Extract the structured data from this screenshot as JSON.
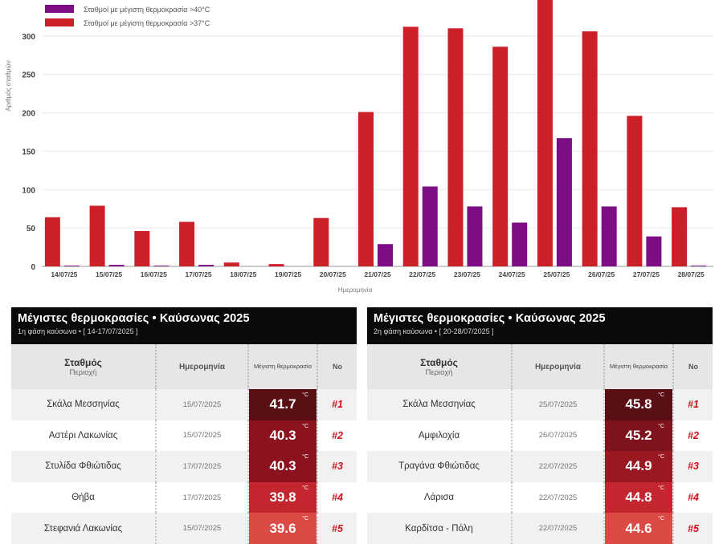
{
  "chart_data": {
    "type": "bar",
    "title": "",
    "xlabel": "Ημερομηνία",
    "ylabel": "Αριθμός σταθμών",
    "ylim": [
      0,
      350
    ],
    "yticks": [
      0,
      50,
      100,
      150,
      200,
      250,
      300
    ],
    "grid": true,
    "legend_position": "top-left",
    "categories": [
      "14/07/25",
      "15/07/25",
      "16/07/25",
      "17/07/25",
      "18/07/25",
      "19/07/25",
      "20/07/25",
      "21/07/25",
      "22/07/25",
      "23/07/25",
      "24/07/25",
      "25/07/25",
      "26/07/25",
      "27/07/25",
      "28/07/25"
    ],
    "series": [
      {
        "name": "Σταθμοί με μέγιστη θερμοκρασία >37°C",
        "color": "#cc1f27",
        "values": [
          64,
          79,
          46,
          58,
          5,
          3,
          63,
          201,
          312,
          310,
          286,
          356,
          306,
          196,
          77
        ]
      },
      {
        "name": "Σταθμοί με μέγιστη θερμοκρασία >40°C",
        "color": "#7d0d84",
        "values": [
          1,
          2,
          1,
          2,
          0,
          0,
          0,
          29,
          104,
          78,
          57,
          167,
          78,
          39,
          1
        ]
      }
    ]
  },
  "tables": [
    {
      "title": "Μέγιστες θερμοκρασίες • Καύσωνας 2025",
      "subtitle": "1η φάση καύσωνα • [ 14-17/07/2025 ]",
      "headers": {
        "station": "Σταθμός",
        "region": "Περιοχή",
        "date": "Ημερομηνία",
        "max": "Μέγιστη θερμοκρασία",
        "no": "No"
      },
      "rows": [
        {
          "station": "Σκάλα Μεσσηνίας",
          "date": "15/07/2025",
          "temp": "41.7",
          "unit": "°C",
          "rank": "#1",
          "color": "#5a0f14"
        },
        {
          "station": "Αστέρι Λακωνίας",
          "date": "15/07/2025",
          "temp": "40.3",
          "unit": "°C",
          "rank": "#2",
          "color": "#8b131f"
        },
        {
          "station": "Στυλίδα Φθιώτιδας",
          "date": "17/07/2025",
          "temp": "40.3",
          "unit": "°C",
          "rank": "#3",
          "color": "#8b131f"
        },
        {
          "station": "Θήβα",
          "date": "17/07/2025",
          "temp": "39.8",
          "unit": "°C",
          "rank": "#4",
          "color": "#c4262f"
        },
        {
          "station": "Στεφανιά Λακωνίας",
          "date": "15/07/2025",
          "temp": "39.6",
          "unit": "°C",
          "rank": "#5",
          "color": "#dc4a46"
        }
      ]
    },
    {
      "title": "Μέγιστες θερμοκρασίες • Καύσωνας 2025",
      "subtitle": "2η φάση καύσωνα • [ 20-28/07/2025 ]",
      "headers": {
        "station": "Σταθμός",
        "region": "Περιοχή",
        "date": "Ημερομηνία",
        "max": "Μέγιστη θερμοκρασία",
        "no": "No"
      },
      "rows": [
        {
          "station": "Σκάλα Μεσσηνίας",
          "date": "25/07/2025",
          "temp": "45.8",
          "unit": "°C",
          "rank": "#1",
          "color": "#5a0f14"
        },
        {
          "station": "Αμφιλοχία",
          "date": "26/07/2025",
          "temp": "45.2",
          "unit": "°C",
          "rank": "#2",
          "color": "#7e121d"
        },
        {
          "station": "Τραγάνα Φθιώτιδας",
          "date": "22/07/2025",
          "temp": "44.9",
          "unit": "°C",
          "rank": "#3",
          "color": "#9a1822"
        },
        {
          "station": "Λάρισα",
          "date": "22/07/2025",
          "temp": "44.8",
          "unit": "°C",
          "rank": "#4",
          "color": "#c4262f"
        },
        {
          "station": "Καρδίτσα - Πόλη",
          "date": "22/07/2025",
          "temp": "44.6",
          "unit": "°C",
          "rank": "#5",
          "color": "#dc4a46"
        }
      ]
    }
  ]
}
